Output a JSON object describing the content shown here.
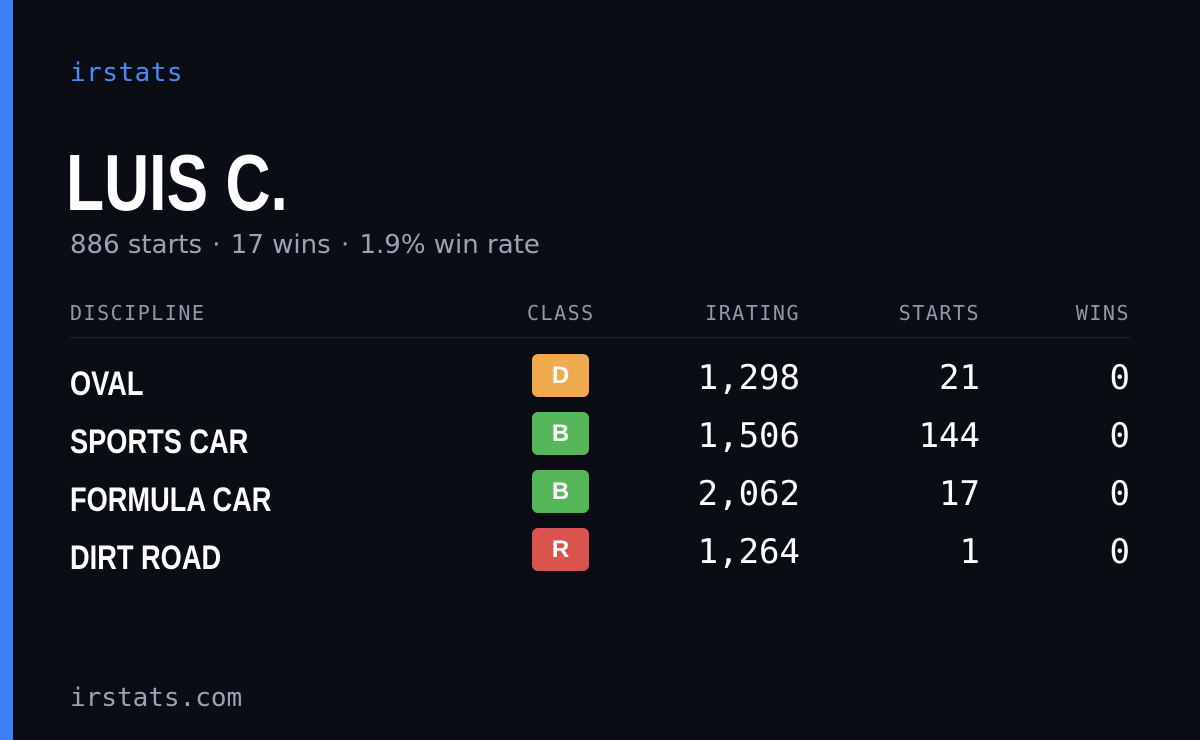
{
  "brand": "irstats",
  "player": {
    "name": "LUIS C.",
    "starts_text": "886 starts",
    "wins_text": "17 wins",
    "winrate_text": "1.9% win rate",
    "separator": "·"
  },
  "table": {
    "headers": {
      "discipline": "DISCIPLINE",
      "class": "CLASS",
      "irating": "IRATING",
      "starts": "STARTS",
      "wins": "WINS"
    },
    "rows": [
      {
        "discipline": "OVAL",
        "class": "D",
        "class_color": "#f0a94c",
        "irating": "1,298",
        "starts": "21",
        "wins": "0"
      },
      {
        "discipline": "SPORTS CAR",
        "class": "B",
        "class_color": "#56b65a",
        "irating": "1,506",
        "starts": "144",
        "wins": "0"
      },
      {
        "discipline": "FORMULA CAR",
        "class": "B",
        "class_color": "#56b65a",
        "irating": "2,062",
        "starts": "17",
        "wins": "0"
      },
      {
        "discipline": "DIRT ROAD",
        "class": "R",
        "class_color": "#d9534f",
        "irating": "1,264",
        "starts": "1",
        "wins": "0"
      }
    ]
  },
  "footer": "irstats.com",
  "colors": {
    "background": "#0a0d14",
    "accent": "#3d82f5",
    "brand": "#4a8cf7",
    "muted": "#9aa3b5"
  }
}
